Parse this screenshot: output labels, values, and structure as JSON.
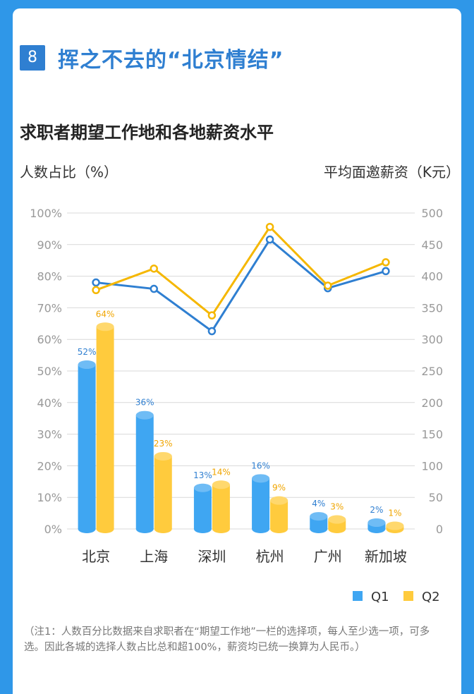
{
  "section": {
    "number": "8",
    "title": "挥之不去的“北京情结”"
  },
  "chart_data": {
    "type": "bar",
    "title": "求职者期望工作地和各地薪资水平",
    "ylabel_left": "人数占比（%）",
    "ylabel_right": "平均面邀薪资（K元）",
    "categories": [
      "北京",
      "上海",
      "深圳",
      "杭州",
      "广州",
      "新加坡"
    ],
    "y_left": {
      "min": 0,
      "max": 100,
      "ticks": [
        "0%",
        "10%",
        "20%",
        "30%",
        "40%",
        "50%",
        "60%",
        "70%",
        "80%",
        "90%",
        "100%"
      ]
    },
    "y_right": {
      "min": 0,
      "max": 500,
      "ticks": [
        "0",
        "50",
        "100",
        "150",
        "200",
        "250",
        "300",
        "350",
        "400",
        "450",
        "500"
      ]
    },
    "grid": true,
    "legend_position": "bottom-right",
    "bar_series": [
      {
        "name": "Q1",
        "values": [
          52,
          36,
          13,
          16,
          4,
          2
        ],
        "labels": [
          "52%",
          "36%",
          "13%",
          "16%",
          "4%",
          "2%"
        ],
        "color": "#3fa6f2",
        "label_color": "#2f7fd1"
      },
      {
        "name": "Q2",
        "values": [
          64,
          23,
          14,
          9,
          3,
          1
        ],
        "labels": [
          "64%",
          "23%",
          "14%",
          "9%",
          "3%",
          "1%"
        ],
        "color": "#ffcb3d",
        "label_color": "#f0a500"
      }
    ],
    "line_series": [
      {
        "name": "Q1",
        "values": [
          390,
          380,
          313,
          458,
          381,
          408
        ],
        "color": "#2f7fd1"
      },
      {
        "name": "Q2",
        "values": [
          378,
          412,
          338,
          478,
          385,
          422
        ],
        "color": "#f5b700"
      }
    ]
  },
  "note": "（注1：人数百分比数据来自求职者在“期望工作地”一栏的选择项，每人至少选一项，可多选。因此各城的选择人数占比总和超100%，薪资均已统一换算为人民币。）"
}
